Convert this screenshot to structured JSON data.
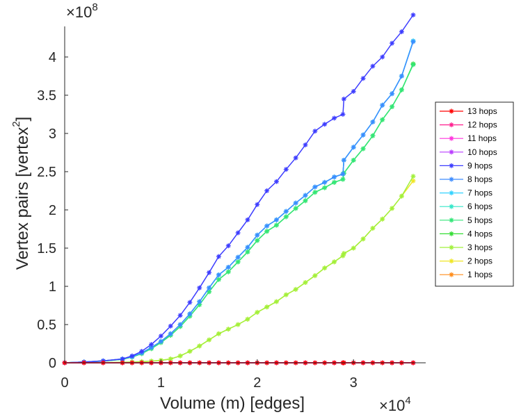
{
  "chart_data": {
    "type": "line",
    "xlabel": "Volume (m) [edges]",
    "ylabel_main": "Vertex pairs [vertex",
    "ylabel_superscript": "2",
    "ylabel_close": "]",
    "x_exponent_label": "×10",
    "x_exponent_power": "4",
    "y_exponent_label": "×10",
    "y_exponent_power": "8",
    "xlim": [
      0,
      37500
    ],
    "ylim": [
      0,
      440000000
    ],
    "x_ticks": [
      0,
      10000,
      20000,
      30000
    ],
    "x_tick_labels": [
      "0",
      "1",
      "2",
      "3"
    ],
    "y_ticks": [
      0,
      50000000,
      100000000,
      150000000,
      200000000,
      250000000,
      300000000,
      350000000,
      400000000
    ],
    "y_tick_labels": [
      "0",
      "0.5",
      "1",
      "1.5",
      "2",
      "2.5",
      "3",
      "3.5",
      "4"
    ],
    "grid": false,
    "legend_position": "right",
    "marker": "asterisk",
    "x": [
      0,
      2000,
      4000,
      6000,
      7000,
      8000,
      9000,
      10000,
      11000,
      12000,
      13000,
      14000,
      15000,
      16000,
      17000,
      18000,
      19000,
      20000,
      21000,
      22000,
      23000,
      24000,
      25000,
      26000,
      27000,
      28000,
      28900,
      29000,
      30000,
      31000,
      32000,
      33000,
      34000,
      35000,
      36200
    ],
    "series": [
      {
        "name": "13 hops",
        "color": "#ff0000",
        "values": [
          0,
          0,
          0,
          0,
          0,
          0,
          0,
          0,
          0,
          0,
          0,
          0,
          0,
          0,
          0,
          0,
          0,
          0,
          0,
          0,
          0,
          0,
          0,
          0,
          0,
          0,
          0,
          0,
          0,
          0,
          0,
          0,
          0,
          0,
          0
        ]
      },
      {
        "name": "12 hops",
        "color": "#ff1f8f",
        "values": [
          0,
          0,
          0,
          0,
          0,
          0,
          0,
          0,
          0,
          0,
          0,
          0,
          0,
          0,
          0,
          0,
          0,
          0,
          0,
          0,
          0,
          0,
          0,
          0,
          0,
          0,
          0,
          0,
          0,
          0,
          0,
          0,
          0,
          0,
          0
        ]
      },
      {
        "name": "11 hops",
        "color": "#ff33dd",
        "values": [
          0,
          0,
          0,
          0,
          0,
          0,
          0,
          0,
          0,
          0,
          0,
          0,
          0,
          0,
          0,
          0,
          0,
          0,
          0,
          0,
          0,
          0,
          0,
          0,
          0,
          0,
          0,
          0,
          0,
          0,
          0,
          0,
          0,
          0,
          0
        ]
      },
      {
        "name": "10 hops",
        "color": "#b93cff",
        "values": [
          0,
          0,
          0,
          0,
          0,
          0,
          0,
          0,
          0,
          0,
          0,
          0,
          0,
          0,
          0,
          0,
          0,
          0,
          0,
          0,
          0,
          0,
          0,
          0,
          0,
          0,
          0,
          0,
          0,
          0,
          0,
          0,
          0,
          0,
          0
        ]
      },
      {
        "name": "9 hops",
        "color": "#3c3cff",
        "values": [
          0,
          1000000,
          2500000,
          5000000,
          9000000,
          15000000,
          24000000,
          35000000,
          48000000,
          62000000,
          79000000,
          98000000,
          118000000,
          139000000,
          153000000,
          170000000,
          187000000,
          207000000,
          225000000,
          237000000,
          253000000,
          268000000,
          285000000,
          303000000,
          312000000,
          320000000,
          325000000,
          345000000,
          355000000,
          372000000,
          388000000,
          400000000,
          418000000,
          433000000,
          455000000
        ]
      },
      {
        "name": "8 hops",
        "color": "#3c8cff",
        "values": [
          0,
          1000000,
          2500000,
          5000000,
          8000000,
          13000000,
          20000000,
          28000000,
          38000000,
          50000000,
          64000000,
          80000000,
          98000000,
          115000000,
          125000000,
          138000000,
          151000000,
          167000000,
          179000000,
          187000000,
          198000000,
          209000000,
          219000000,
          230000000,
          236000000,
          243000000,
          247000000,
          265000000,
          282000000,
          298000000,
          315000000,
          337000000,
          352000000,
          375000000,
          420000000
        ]
      },
      {
        "name": "7 hops",
        "color": "#33d2ff",
        "values": [
          0,
          1000000,
          2500000,
          5000000,
          8000000,
          13000000,
          20000000,
          28000000,
          38000000,
          50000000,
          64000000,
          80000000,
          98000000,
          115000000,
          125000000,
          138000000,
          151000000,
          167000000,
          179000000,
          187000000,
          198000000,
          209000000,
          219000000,
          230000000,
          236000000,
          243000000,
          247000000,
          265000000,
          282000000,
          298000000,
          315000000,
          337000000,
          352000000,
          375000000,
          421000000
        ]
      },
      {
        "name": "6 hops",
        "color": "#33e6c8",
        "values": [
          0,
          1000000,
          2500000,
          5000000,
          8000000,
          13000000,
          20000000,
          28000000,
          38000000,
          50000000,
          64000000,
          80000000,
          98000000,
          115000000,
          125000000,
          138000000,
          151000000,
          167000000,
          179000000,
          187000000,
          198000000,
          209000000,
          219000000,
          230000000,
          236000000,
          243000000,
          247000000,
          265000000,
          282000000,
          298000000,
          315000000,
          337000000,
          352000000,
          375000000,
          421000000
        ]
      },
      {
        "name": "5 hops",
        "color": "#33e678",
        "values": [
          0,
          1000000,
          2200000,
          4500000,
          7500000,
          12000000,
          18500000,
          26500000,
          36000000,
          47500000,
          61000000,
          76000000,
          93000000,
          109000000,
          119000000,
          132000000,
          145000000,
          160000000,
          172000000,
          180000000,
          191000000,
          202000000,
          212000000,
          223000000,
          229000000,
          236000000,
          240000000,
          248000000,
          265000000,
          280000000,
          297000000,
          318000000,
          335000000,
          357000000,
          390000000
        ]
      },
      {
        "name": "4 hops",
        "color": "#33dd33",
        "values": [
          0,
          1000000,
          2200000,
          4500000,
          7500000,
          12000000,
          18500000,
          26500000,
          36000000,
          47500000,
          61000000,
          76000000,
          93000000,
          109000000,
          119000000,
          132000000,
          145000000,
          160000000,
          172000000,
          180000000,
          191000000,
          202000000,
          212000000,
          223000000,
          229000000,
          236000000,
          240000000,
          248000000,
          265000000,
          280000000,
          297000000,
          318000000,
          335000000,
          357000000,
          391000000
        ]
      },
      {
        "name": "3 hops",
        "color": "#a0f03c",
        "values": [
          0,
          0,
          200000,
          600000,
          1000000,
          1500000,
          2200000,
          3200000,
          5000000,
          9000000,
          15000000,
          22000000,
          30000000,
          38000000,
          44000000,
          50000000,
          57000000,
          66000000,
          73000000,
          80000000,
          89000000,
          96000000,
          105000000,
          114000000,
          124000000,
          132000000,
          140000000,
          143000000,
          150000000,
          162000000,
          176000000,
          188000000,
          202000000,
          218000000,
          244000000
        ]
      },
      {
        "name": "2 hops",
        "color": "#f0e626",
        "values": [
          0,
          0,
          200000,
          600000,
          1000000,
          1500000,
          2200000,
          3200000,
          5000000,
          9000000,
          15000000,
          22000000,
          30000000,
          38000000,
          44000000,
          50000000,
          57000000,
          66000000,
          73000000,
          80000000,
          89000000,
          96000000,
          105000000,
          114000000,
          124000000,
          132000000,
          140000000,
          143000000,
          150000000,
          162000000,
          176000000,
          188000000,
          202000000,
          218000000,
          238000000
        ]
      },
      {
        "name": "1 hops",
        "color": "#ff8c1a",
        "values": [
          0,
          0,
          0,
          0,
          0,
          0,
          0,
          0,
          0,
          0,
          0,
          0,
          0,
          0,
          0,
          0,
          0,
          0,
          0,
          0,
          0,
          0,
          0,
          0,
          0,
          0,
          0,
          0,
          0,
          0,
          0,
          0,
          0,
          0,
          0
        ]
      }
    ]
  }
}
